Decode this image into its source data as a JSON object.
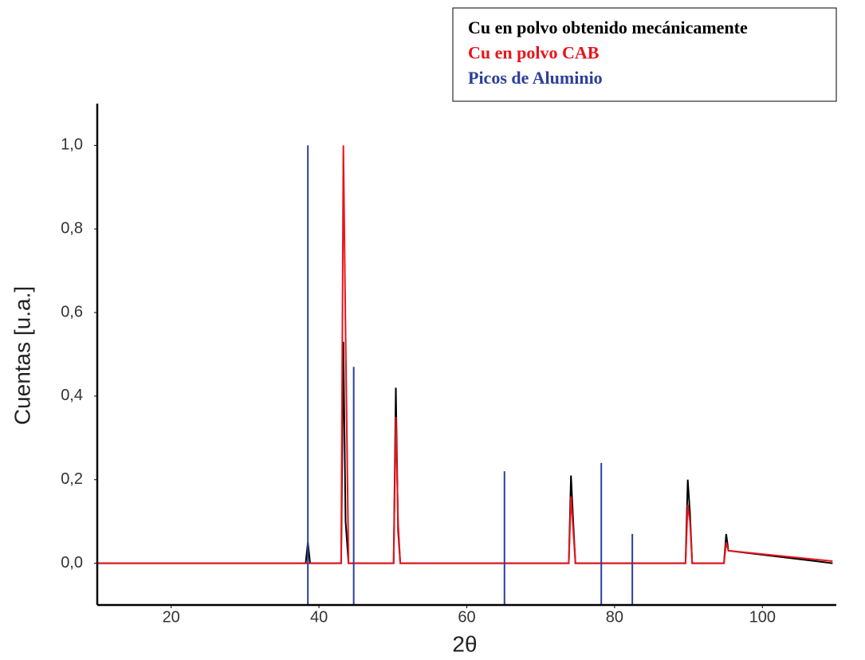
{
  "chart_data": {
    "type": "line",
    "xlabel": "2θ",
    "ylabel": "Cuentas [u.a.]",
    "x": [
      10,
      20,
      30,
      38.2,
      38.5,
      38.8,
      43.0,
      43.3,
      43.6,
      44.0,
      50.1,
      50.4,
      50.7,
      51.0,
      73.8,
      74.1,
      74.4,
      74.7,
      89.6,
      89.9,
      90.2,
      90.5,
      94.8,
      95.1,
      95.4,
      109.5
    ],
    "series": [
      {
        "name": "Cu en polvo obtenido mecánicamente",
        "color": "#000000",
        "values": [
          0,
          0,
          0,
          0,
          0.05,
          0,
          0,
          0.53,
          0.1,
          0,
          0,
          0.42,
          0.08,
          0,
          0,
          0.21,
          0.1,
          0,
          0,
          0.2,
          0.12,
          0,
          0,
          0.07,
          0.03,
          0
        ]
      },
      {
        "name": "Cu en polvo CAB",
        "color": "#e8141b",
        "values": [
          0,
          0,
          0,
          0,
          0,
          0,
          0,
          1.0,
          0.55,
          0,
          0,
          0.35,
          0.1,
          0,
          0,
          0.16,
          0.08,
          0,
          0,
          0.14,
          0.1,
          0,
          0,
          0.05,
          0.03,
          0.005
        ]
      },
      {
        "name": "Picos de Aluminio",
        "color": "#2b3f9a",
        "style": "stick",
        "x": [
          38.5,
          44.7,
          65.1,
          78.2,
          82.4
        ],
        "values": [
          1.0,
          0.47,
          0.22,
          0.24,
          0.07
        ]
      }
    ],
    "xlim": [
      10,
      110
    ],
    "ylim": [
      -0.1,
      1.1
    ],
    "xticks": [
      20,
      40,
      60,
      80,
      100
    ],
    "yticks": [
      {
        "value": 0,
        "label": "0,0"
      },
      {
        "value": 0.2,
        "label": "0,2"
      },
      {
        "value": 0.4,
        "label": "0,4"
      },
      {
        "value": 0.6,
        "label": "0,6"
      },
      {
        "value": 0.8,
        "label": "0,8"
      },
      {
        "value": 1.0,
        "label": "1,0"
      }
    ],
    "legend": "upper right"
  }
}
